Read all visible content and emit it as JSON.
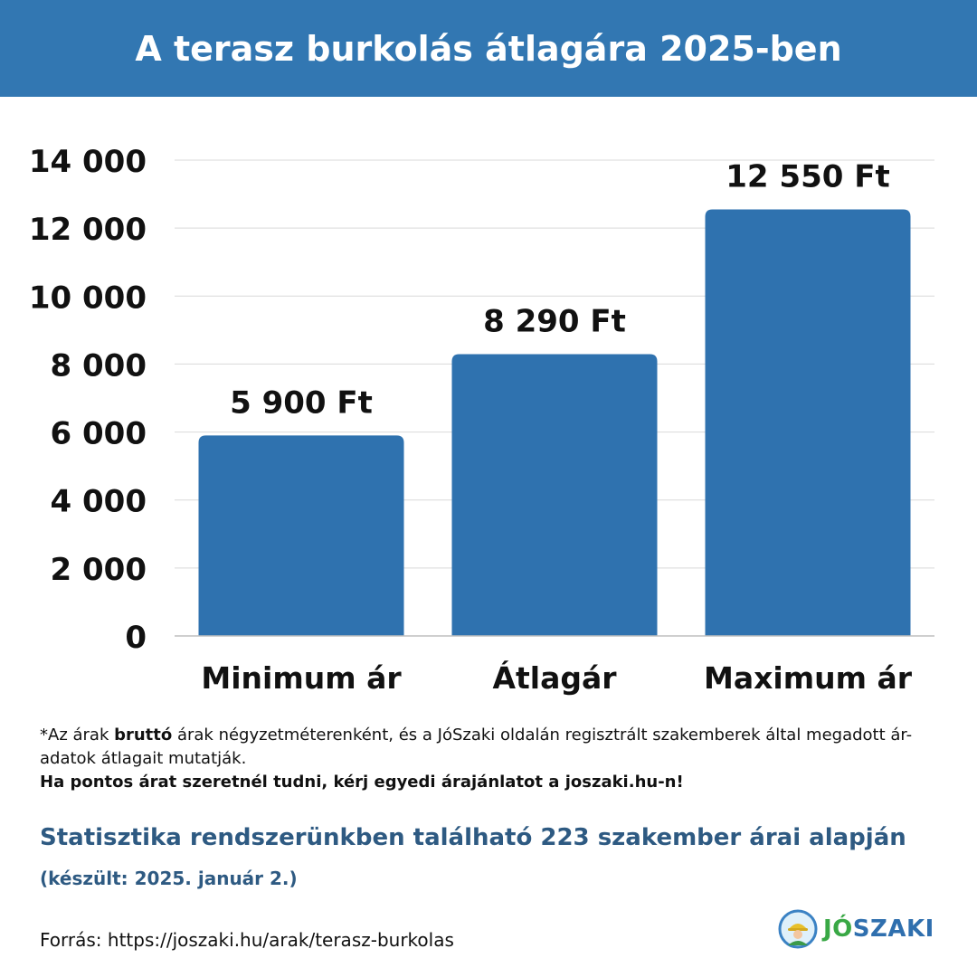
{
  "header": {
    "title": "A terasz burkolás átlagára 2025-ben"
  },
  "colors": {
    "header_bg": "#3277b2",
    "bar": "#2f72af",
    "accent_text": "#2e5a82",
    "logo_green": "#39a845",
    "logo_blue": "#2f6fae"
  },
  "chart_data": {
    "type": "bar",
    "title": "A terasz burkolás átlagára 2025-ben",
    "categories": [
      "Minimum ár",
      "Átlagár",
      "Maximum ár"
    ],
    "values": [
      5900,
      8290,
      12550
    ],
    "data_labels": [
      "5 900 Ft",
      "8 290 Ft",
      "12 550 Ft"
    ],
    "ylim": [
      0,
      14000
    ],
    "yticks": [
      0,
      2000,
      4000,
      6000,
      8000,
      10000,
      12000,
      14000
    ],
    "ytick_labels": [
      "0",
      "2 000",
      "4 000",
      "6 000",
      "8 000",
      "10 000",
      "12 000",
      "14 000"
    ],
    "grid": true,
    "legend": "none"
  },
  "notes": {
    "prefix": "*Az árak ",
    "bold_word": "bruttó",
    "suffix": " árak négyzetméterenként, és a JóSzaki oldalán regisztrált szakemberek által megadott ár-adatok átlagait mutatják.",
    "cta": "Ha pontos árat szeretnél tudni, kérj egyedi árajánlatot a joszaki.hu-n!"
  },
  "stats": {
    "line": "Statisztika rendszerünkben található 223 szakember árai alapján",
    "date": "(készült: 2025. január 2.)"
  },
  "footer": {
    "source": "Forrás: https://joszaki.hu/arak/terasz-burkolas"
  },
  "logo": {
    "part1": "JÓ",
    "part2": "SZAKI",
    "icon": "worker-avatar-icon"
  }
}
